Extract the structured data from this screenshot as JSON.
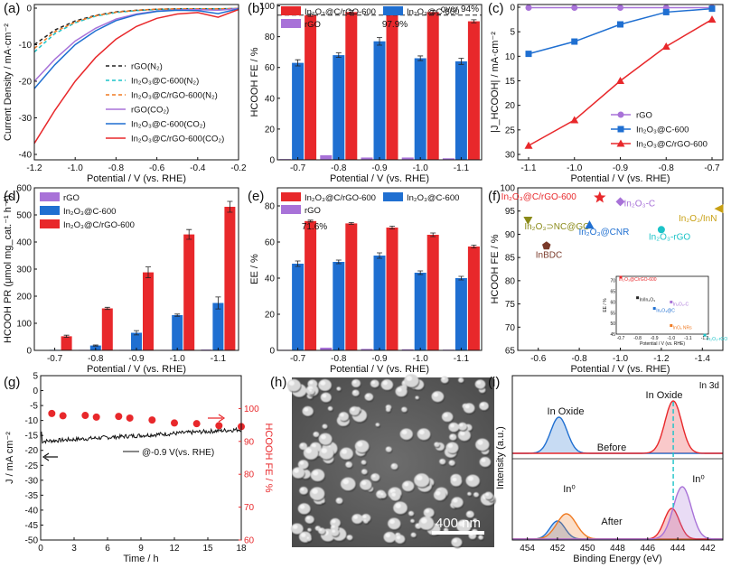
{
  "figure": {
    "colors": {
      "red": "#e8282b",
      "blue": "#1f6fd1",
      "purple": "#a872d8",
      "black": "#222222",
      "cyan": "#1cc3c8",
      "orange": "#f07a22",
      "gray": "#7a7a7a"
    }
  },
  "chart_data": [
    {
      "panel": "a",
      "type": "line",
      "xlabel": "Potential / V (vs. RHE)",
      "ylabel": "Current Density / mA·cm⁻²",
      "xlim": [
        -1.2,
        -0.2
      ],
      "ylim": [
        -40,
        0
      ],
      "xticks": [
        "-1.2",
        "-1.0",
        "-0.8",
        "-0.6",
        "-0.4",
        "-0.2"
      ],
      "yticks": [
        "0",
        "-10",
        "-20",
        "-30",
        "-40"
      ],
      "legend": [
        {
          "label": "rGO(N₂)",
          "color": "#222222",
          "dash": true
        },
        {
          "label": "In₂O₃@C-600(N₂)",
          "color": "#1cc3c8",
          "dash": true
        },
        {
          "label": "In₂O₃@C/rGO-600(N₂)",
          "color": "#f07a22",
          "dash": true
        },
        {
          "label": "rGO(CO₂)",
          "color": "#a872d8",
          "dash": false
        },
        {
          "label": "In₂O₃@C-600(CO₂)",
          "color": "#1f6fd1",
          "dash": false
        },
        {
          "label": "In₂O₃@C/rGO-600(CO₂)",
          "color": "#e8282b",
          "dash": false
        }
      ],
      "series": [
        {
          "name": "rGO(N₂)",
          "color": "#222222",
          "dash": true,
          "x": [
            -1.2,
            -1.1,
            -1.0,
            -0.9,
            -0.8,
            -0.7,
            -0.6,
            -0.5,
            -0.4,
            -0.3,
            -0.2
          ],
          "y": [
            -10,
            -6,
            -3.5,
            -2,
            -1,
            -0.6,
            -0.3,
            -0.2,
            -0.2,
            -0.2,
            -0.1
          ]
        },
        {
          "name": "In₂O₃@C-600(N₂)",
          "color": "#1cc3c8",
          "dash": true,
          "x": [
            -1.2,
            -1.1,
            -1.0,
            -0.9,
            -0.8,
            -0.7,
            -0.6,
            -0.5,
            -0.4,
            -0.3,
            -0.2
          ],
          "y": [
            -12,
            -7,
            -4,
            -2.2,
            -1.2,
            -0.7,
            -0.4,
            -0.3,
            -0.2,
            -0.2,
            -0.1
          ]
        },
        {
          "name": "In₂O₃@C/rGO-600(N₂)",
          "color": "#f07a22",
          "dash": true,
          "x": [
            -1.2,
            -1.1,
            -1.0,
            -0.9,
            -0.8,
            -0.7,
            -0.6,
            -0.5,
            -0.4,
            -0.3,
            -0.2
          ],
          "y": [
            -11,
            -6.5,
            -3.8,
            -2.1,
            -1.1,
            -0.6,
            -0.3,
            -0.2,
            -0.2,
            -0.2,
            -0.1
          ]
        },
        {
          "name": "rGO(CO₂)",
          "color": "#a872d8",
          "dash": false,
          "x": [
            -1.2,
            -1.1,
            -1.0,
            -0.9,
            -0.8,
            -0.7,
            -0.6,
            -0.5,
            -0.4,
            -0.3,
            -0.2
          ],
          "y": [
            -20,
            -14,
            -9,
            -5.5,
            -3,
            -1.6,
            -0.8,
            -0.5,
            -0.4,
            -0.6,
            -0.1
          ]
        },
        {
          "name": "In₂O₃@C-600(CO₂)",
          "color": "#1f6fd1",
          "dash": false,
          "x": [
            -1.2,
            -1.1,
            -1.0,
            -0.9,
            -0.8,
            -0.7,
            -0.6,
            -0.5,
            -0.4,
            -0.3,
            -0.2
          ],
          "y": [
            -22,
            -15.5,
            -10,
            -6.2,
            -3.4,
            -1.8,
            -0.9,
            -0.6,
            -0.7,
            -1.5,
            -0.2
          ]
        },
        {
          "name": "In₂O₃@C/rGO-600(CO₂)",
          "color": "#e8282b",
          "dash": false,
          "x": [
            -1.2,
            -1.1,
            -1.0,
            -0.9,
            -0.8,
            -0.7,
            -0.6,
            -0.5,
            -0.4,
            -0.3,
            -0.2
          ],
          "y": [
            -37,
            -28,
            -20,
            -13.5,
            -8.5,
            -5,
            -2.8,
            -1.6,
            -1.2,
            -2.5,
            -0.4
          ]
        }
      ]
    },
    {
      "panel": "b",
      "type": "bar",
      "ylabel": "HCOOH FE / %",
      "xlabel": "Potential / V (vs. RHE)",
      "ylim": [
        0,
        100
      ],
      "categories": [
        "-0.7",
        "-0.8",
        "-0.9",
        "-1.0",
        "-1.1"
      ],
      "yticks": [
        "0",
        "20",
        "40",
        "60",
        "80",
        "100"
      ],
      "series": [
        {
          "name": "rGO",
          "color": "#a872d8",
          "values": [
            0.5,
            3,
            1.5,
            1.5,
            1
          ],
          "err": [
            0,
            0,
            0,
            0,
            0
          ]
        },
        {
          "name": "In₂O₃@C-600",
          "color": "#1f6fd1",
          "values": [
            63,
            68,
            77,
            66,
            64
          ],
          "err": [
            2,
            1.5,
            2.5,
            1.5,
            2
          ]
        },
        {
          "name": "In₂O₃@C/rGO-600",
          "color": "#e8282b",
          "values": [
            94,
            96,
            97.9,
            96,
            90
          ],
          "err": [
            0.8,
            1,
            1.2,
            1,
            1
          ]
        }
      ],
      "legend_order": [
        "In₂O₃@C/rGO-600",
        "In₂O₃@C-600",
        "rGO"
      ],
      "annotations": {
        "peak": "97.9%",
        "dashed": "over 94%",
        "dashed_value": 94
      }
    },
    {
      "panel": "c",
      "type": "line",
      "ylabel": "|J_HCOOH| / mA·cm⁻²",
      "xlabel": "Potential / V (vs. RHE)",
      "x": [
        -1.1,
        -1.0,
        -0.9,
        -0.8,
        -0.7
      ],
      "xticks": [
        "-1.1",
        "-1.0",
        "-0.9",
        "-0.8",
        "-0.7"
      ],
      "ylim": [
        0,
        30
      ],
      "inverted": true,
      "yticks": [
        "0",
        "5",
        "10",
        "15",
        "20",
        "25",
        "30"
      ],
      "series": [
        {
          "name": "rGO",
          "color": "#a872d8",
          "marker": "circle",
          "values": [
            0.1,
            0.1,
            0.1,
            0.1,
            0.1
          ]
        },
        {
          "name": "In₂O₃@C-600",
          "color": "#1f6fd1",
          "marker": "square",
          "values": [
            9.5,
            7,
            3.5,
            1,
            0.3
          ]
        },
        {
          "name": "In₂O₃@C/rGO-600",
          "color": "#e8282b",
          "marker": "triangle",
          "values": [
            28.2,
            23,
            15,
            8,
            2.5
          ]
        }
      ]
    },
    {
      "panel": "d",
      "type": "bar",
      "ylabel": "HCOOH PR (μmol mg_cat.⁻¹ h⁻¹)",
      "xlabel": "Potential / V (vs. RHE)",
      "ylim": [
        0,
        600
      ],
      "categories": [
        "-0.7",
        "-0.8",
        "-0.9",
        "-1.0",
        "-1.1"
      ],
      "yticks": [
        "0",
        "100",
        "200",
        "300",
        "400",
        "500",
        "600"
      ],
      "series": [
        {
          "name": "rGO",
          "color": "#a872d8",
          "values": [
            1,
            2,
            2,
            2,
            3
          ],
          "err": [
            0,
            0,
            0,
            0,
            0
          ]
        },
        {
          "name": "In₂O₃@C-600",
          "color": "#1f6fd1",
          "values": [
            2,
            18,
            65,
            130,
            175
          ],
          "err": [
            0,
            2,
            8,
            4,
            22
          ]
        },
        {
          "name": "In₂O₃@C/rGO-600",
          "color": "#e8282b",
          "values": [
            52,
            155,
            288,
            428,
            530
          ],
          "err": [
            4,
            4,
            20,
            18,
            20
          ]
        }
      ]
    },
    {
      "panel": "e",
      "type": "bar",
      "ylabel": "EE / %",
      "xlabel": "Potential / V (vs. RHE)",
      "ylim": [
        0,
        90
      ],
      "categories": [
        "-0.7",
        "-0.8",
        "-0.9",
        "-1.0",
        "-1.1"
      ],
      "yticks": [
        "0",
        "20",
        "40",
        "60",
        "80"
      ],
      "series": [
        {
          "name": "rGO",
          "color": "#a872d8",
          "values": [
            0.3,
            1.5,
            0.8,
            0.6,
            0.4
          ],
          "err": [
            0,
            0,
            0,
            0,
            0
          ]
        },
        {
          "name": "In₂O₃@C-600",
          "color": "#1f6fd1",
          "values": [
            48,
            49,
            52.5,
            43,
            40
          ],
          "err": [
            1.5,
            1,
            1.5,
            1,
            1
          ]
        },
        {
          "name": "In₂O₃@C/rGO-600",
          "color": "#e8282b",
          "values": [
            71.6,
            70.3,
            68,
            64,
            57.5
          ],
          "err": [
            0.5,
            0.5,
            0.8,
            1,
            0.8
          ]
        }
      ],
      "legend_order": [
        "In₂O₃@C/rGO-600",
        "In₂O₃@C-600",
        "rGO"
      ],
      "annotations": {
        "peak": "71.6%"
      }
    },
    {
      "panel": "f",
      "type": "scatter",
      "ylabel": "HCOOH FE / %",
      "xlabel": "Potential / V (vs. RHE)",
      "xlim": [
        -0.5,
        -1.5
      ],
      "ylim": [
        65,
        100
      ],
      "xticks": [
        "-0.6",
        "-0.8",
        "-1.0",
        "-1.2",
        "-1.4"
      ],
      "yticks": [
        "65",
        "70",
        "75",
        "80",
        "85",
        "90",
        "95",
        "100"
      ],
      "points": [
        {
          "label": "In₂O₃@C/rGO-600",
          "x": -0.9,
          "y": 97.9,
          "color": "#e8282b",
          "marker": "star"
        },
        {
          "label": "In₂O₃-C",
          "x": -1.0,
          "y": 97,
          "color": "#a872d8",
          "marker": "diamond"
        },
        {
          "label": "In₂O₃/InN",
          "x": -1.48,
          "y": 95.5,
          "color": "#c8a014",
          "marker": "tri-left"
        },
        {
          "label": "In₂O₃⊃NC@GO",
          "x": -0.55,
          "y": 93,
          "color": "#8a8a18",
          "marker": "tri-down"
        },
        {
          "label": "In₂O₃@CNR",
          "x": -0.85,
          "y": 92,
          "color": "#1f6fd1",
          "marker": "triangle"
        },
        {
          "label": "In₂O₃-rGO",
          "x": -1.2,
          "y": 91,
          "color": "#1cc3c8",
          "marker": "circle"
        },
        {
          "label": "InBDC",
          "x": -0.64,
          "y": 87.5,
          "color": "#7a3a2a",
          "marker": "pentagon"
        }
      ],
      "inset": {
        "xlabel": "Potential / V (vs. RHE)",
        "ylabel": "EE / %",
        "xticks": [
          "-0.7",
          "-0.8",
          "-0.9",
          "-1.0",
          "-1.1",
          "-1.2"
        ],
        "yticks": [
          "45",
          "50",
          "55",
          "60",
          "65",
          "70"
        ],
        "points": [
          {
            "label": "In₂O₃@C/rGO-600",
            "color": "#e8282b"
          },
          {
            "label": "In/In₂O₃",
            "color": "#222222"
          },
          {
            "label": "In₂O₃@C",
            "color": "#1f6fd1"
          },
          {
            "label": "In₂O₃-C",
            "color": "#a872d8"
          },
          {
            "label": "InOₓ NRs",
            "color": "#f07a22"
          },
          {
            "label": "In₂O₃-rGO",
            "color": "#1cc3c8"
          }
        ]
      }
    },
    {
      "panel": "g",
      "type": "line",
      "xlabel": "Time / h",
      "ylabel": "J / mA cm⁻²",
      "ylabel_right": "HCOOH FE / %",
      "xlim": [
        0,
        18
      ],
      "ylim": [
        -50,
        5
      ],
      "ylim_right": [
        60,
        110
      ],
      "xticks": [
        "0",
        "3",
        "6",
        "9",
        "12",
        "15",
        "18"
      ],
      "yticks": [
        "5",
        "0",
        "-5",
        "-10",
        "-15",
        "-20",
        "-25",
        "-30",
        "-35",
        "-40",
        "-45",
        "-50"
      ],
      "yticks_right": [
        "100",
        "90",
        "80",
        "70",
        "60"
      ],
      "current_mean": -16,
      "current_end": -13,
      "fe_points": {
        "x": [
          1,
          2,
          4,
          5,
          7,
          8,
          10,
          12,
          14,
          16,
          18
        ],
        "y": [
          98.5,
          97.8,
          97.9,
          97.4,
          97.6,
          97.1,
          96.5,
          95.6,
          95.4,
          94.8,
          94.5
        ]
      },
      "annotation": "@-0.9 V(vs. RHE)"
    },
    {
      "panel": "i",
      "type": "line",
      "xlabel": "Binding Energy (eV)",
      "ylabel": "Intensity (a.u.)",
      "xlim": [
        455,
        441
      ],
      "xticks": [
        "454",
        "452",
        "450",
        "448",
        "446",
        "444",
        "442"
      ],
      "labels": {
        "corner": "In 3d",
        "oxide_left": "In Oxide",
        "oxide_right": "In Oxide",
        "before": "Before",
        "after": "After",
        "in0_left": "In⁰",
        "in0_right": "In⁰"
      }
    }
  ],
  "panel_h": {
    "scalebar": "400 nm"
  }
}
